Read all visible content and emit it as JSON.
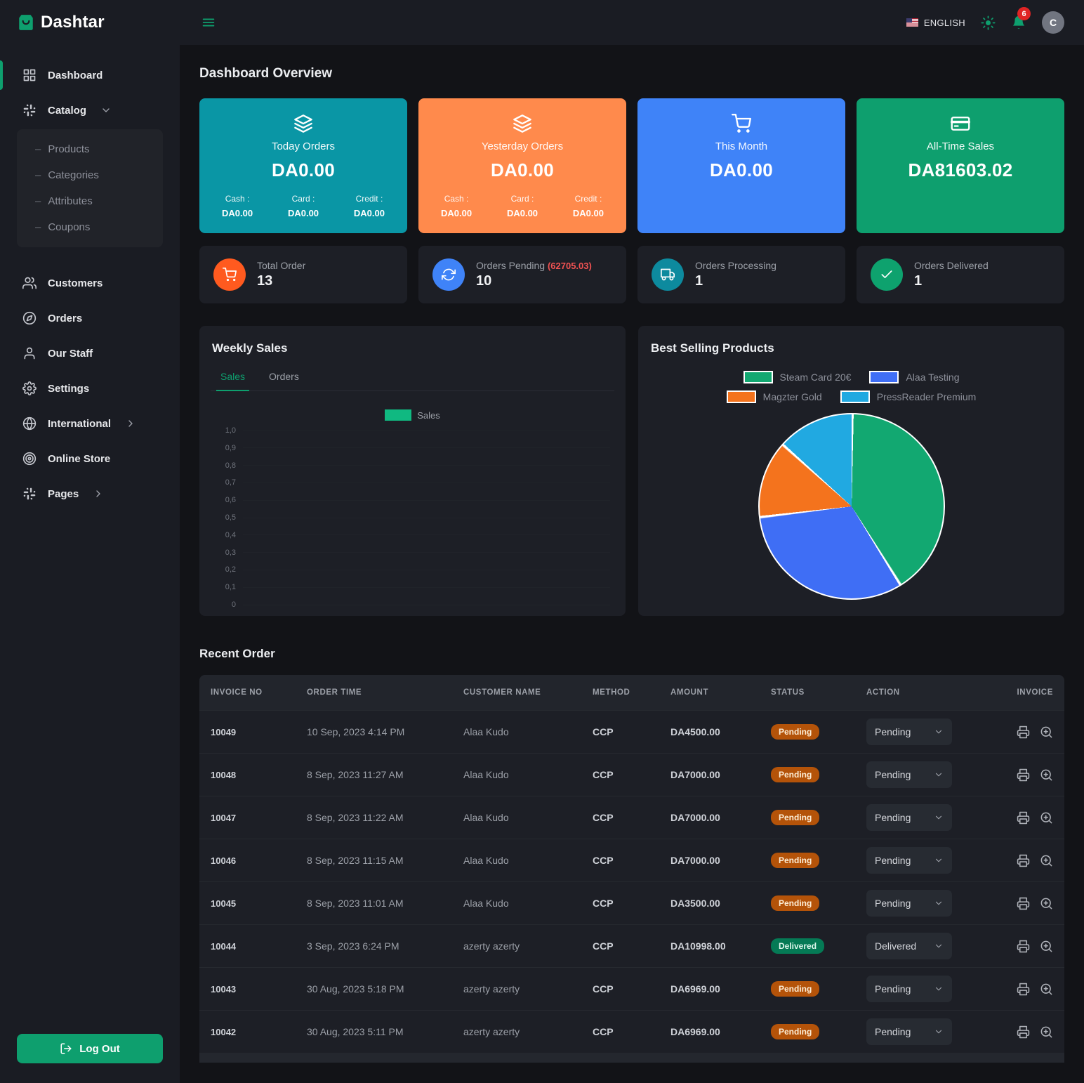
{
  "brand": {
    "name": "Dashtar"
  },
  "topbar": {
    "language": "ENGLISH",
    "notification_count": "6",
    "avatar_initial": "C"
  },
  "sidebar": {
    "items": [
      {
        "label": "Dashboard",
        "icon": "grid-icon",
        "active": true
      },
      {
        "label": "Catalog",
        "icon": "catalog-icon",
        "chevron": "down",
        "children": [
          "Products",
          "Categories",
          "Attributes",
          "Coupons"
        ]
      },
      {
        "label": "Customers",
        "icon": "users-icon"
      },
      {
        "label": "Orders",
        "icon": "compass-icon"
      },
      {
        "label": "Our Staff",
        "icon": "user-icon"
      },
      {
        "label": "Settings",
        "icon": "gear-icon"
      },
      {
        "label": "International",
        "icon": "globe-icon",
        "chevron": "right"
      },
      {
        "label": "Online Store",
        "icon": "disc-icon"
      },
      {
        "label": "Pages",
        "icon": "pages-icon",
        "chevron": "right"
      }
    ],
    "logout_label": "Log Out"
  },
  "page_title": "Dashboard Overview",
  "summary_cards": [
    {
      "title": "Today Orders",
      "amount": "DA0.00",
      "color": "#0a96a5",
      "icon": "layers-icon",
      "breakdown": [
        {
          "label": "Cash :",
          "value": "DA0.00"
        },
        {
          "label": "Card :",
          "value": "DA0.00"
        },
        {
          "label": "Credit :",
          "value": "DA0.00"
        }
      ]
    },
    {
      "title": "Yesterday Orders",
      "amount": "DA0.00",
      "color": "#ff8a4c",
      "icon": "layers-icon",
      "breakdown": [
        {
          "label": "Cash :",
          "value": "DA0.00"
        },
        {
          "label": "Card :",
          "value": "DA0.00"
        },
        {
          "label": "Credit :",
          "value": "DA0.00"
        }
      ]
    },
    {
      "title": "This Month",
      "amount": "DA0.00",
      "color": "#3f83f8",
      "icon": "cart-icon"
    },
    {
      "title": "All-Time Sales",
      "amount": "DA81603.02",
      "color": "#0e9f6e",
      "icon": "credit-card-icon"
    }
  ],
  "stat_cards": [
    {
      "label": "Total Order",
      "value": "13",
      "color": "#ff5a1f",
      "icon": "cart-icon"
    },
    {
      "label": "Orders Pending",
      "note": "(62705.03)",
      "value": "10",
      "color": "#3f83f8",
      "icon": "refresh-icon"
    },
    {
      "label": "Orders Processing",
      "value": "1",
      "color": "#0d8a9e",
      "icon": "truck-icon"
    },
    {
      "label": "Orders Delivered",
      "value": "1",
      "color": "#0ea26e",
      "icon": "check-icon"
    }
  ],
  "weekly_sales": {
    "title": "Weekly Sales",
    "tabs": [
      "Sales",
      "Orders"
    ],
    "active_tab": "Sales"
  },
  "best_selling": {
    "title": "Best Selling Products"
  },
  "chart_data": [
    {
      "type": "line",
      "title": "Weekly Sales",
      "series": [
        {
          "name": "Sales",
          "values": []
        }
      ],
      "ylim": [
        0,
        1
      ],
      "y_ticks": [
        "1,0",
        "0,9",
        "0,8",
        "0,7",
        "0,6",
        "0,5",
        "0,4",
        "0,3",
        "0,2",
        "0,1",
        "0"
      ],
      "legend": [
        {
          "label": "Sales",
          "color": "#10b981"
        }
      ],
      "legend_position": "top",
      "grid": true
    },
    {
      "type": "pie",
      "title": "Best Selling Products",
      "labels": [
        "Steam Card 20€",
        "Alaa Testing",
        "Magzter Gold",
        "PressReader Premium"
      ],
      "values_percent": [
        41,
        32,
        13.5,
        13.5
      ],
      "colors": [
        "#12a871",
        "#3f6ef5",
        "#f4731d",
        "#21a9e1"
      ],
      "legend_position": "top",
      "legend_rows": [
        [
          0,
          1
        ],
        [
          2,
          3
        ]
      ]
    }
  ],
  "recent_orders": {
    "title": "Recent Order",
    "columns": [
      "Invoice No",
      "Order Time",
      "Customer Name",
      "Method",
      "Amount",
      "Status",
      "Action",
      "Invoice"
    ],
    "rows": [
      {
        "invoice": "10049",
        "time": "10 Sep, 2023 4:14 PM",
        "customer": "Alaa Kudo",
        "method": "CCP",
        "amount": "DA4500.00",
        "status": "Pending"
      },
      {
        "invoice": "10048",
        "time": "8 Sep, 2023 11:27 AM",
        "customer": "Alaa Kudo",
        "method": "CCP",
        "amount": "DA7000.00",
        "status": "Pending"
      },
      {
        "invoice": "10047",
        "time": "8 Sep, 2023 11:22 AM",
        "customer": "Alaa Kudo",
        "method": "CCP",
        "amount": "DA7000.00",
        "status": "Pending"
      },
      {
        "invoice": "10046",
        "time": "8 Sep, 2023 11:15 AM",
        "customer": "Alaa Kudo",
        "method": "CCP",
        "amount": "DA7000.00",
        "status": "Pending"
      },
      {
        "invoice": "10045",
        "time": "8 Sep, 2023 11:01 AM",
        "customer": "Alaa Kudo",
        "method": "CCP",
        "amount": "DA3500.00",
        "status": "Pending"
      },
      {
        "invoice": "10044",
        "time": "3 Sep, 2023 6:24 PM",
        "customer": "azerty azerty",
        "method": "CCP",
        "amount": "DA10998.00",
        "status": "Delivered"
      },
      {
        "invoice": "10043",
        "time": "30 Aug, 2023 5:18 PM",
        "customer": "azerty azerty",
        "method": "CCP",
        "amount": "DA6969.00",
        "status": "Pending"
      },
      {
        "invoice": "10042",
        "time": "30 Aug, 2023 5:11 PM",
        "customer": "azerty azerty",
        "method": "CCP",
        "amount": "DA6969.00",
        "status": "Pending"
      }
    ],
    "status_styles": {
      "Pending": {
        "bg": "#b45309",
        "text": "#fdeed7"
      },
      "Delivered": {
        "bg": "#057a55",
        "text": "#def7ec"
      }
    }
  }
}
